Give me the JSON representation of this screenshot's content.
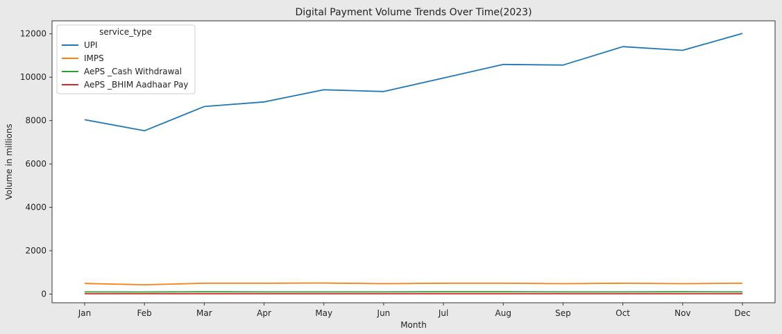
{
  "chart_data": {
    "type": "line",
    "title": "Digital Payment Volume Trends Over Time(2023)",
    "xlabel": "Month",
    "ylabel": "Volume in millions",
    "categories": [
      "Jan",
      "Feb",
      "Mar",
      "Apr",
      "May",
      "Jun",
      "Jul",
      "Aug",
      "Sep",
      "Oct",
      "Nov",
      "Dec"
    ],
    "ylim": [
      -400,
      12600
    ],
    "yticks": [
      0,
      2000,
      4000,
      6000,
      8000,
      10000,
      12000
    ],
    "grid": false,
    "legend": {
      "title": "service_type",
      "placement": "top-left"
    },
    "series": [
      {
        "name": "UPI",
        "color": "#1f77b4",
        "values": [
          8040,
          7530,
          8650,
          8860,
          9420,
          9340,
          9960,
          10590,
          10560,
          11410,
          11240,
          12020
        ]
      },
      {
        "name": "IMPS",
        "color": "#ff7f0e",
        "values": [
          490,
          430,
          500,
          500,
          510,
          480,
          500,
          500,
          480,
          500,
          480,
          500
        ]
      },
      {
        "name": "AePS _Cash Withdrawal",
        "color": "#2ca02c",
        "values": [
          100,
          95,
          105,
          100,
          100,
          100,
          105,
          105,
          100,
          100,
          105,
          100
        ]
      },
      {
        "name": "AePS _BHIM Aadhaar Pay",
        "color": "#d62728",
        "values": [
          15,
          15,
          15,
          15,
          15,
          15,
          15,
          15,
          15,
          15,
          15,
          15
        ]
      }
    ]
  }
}
